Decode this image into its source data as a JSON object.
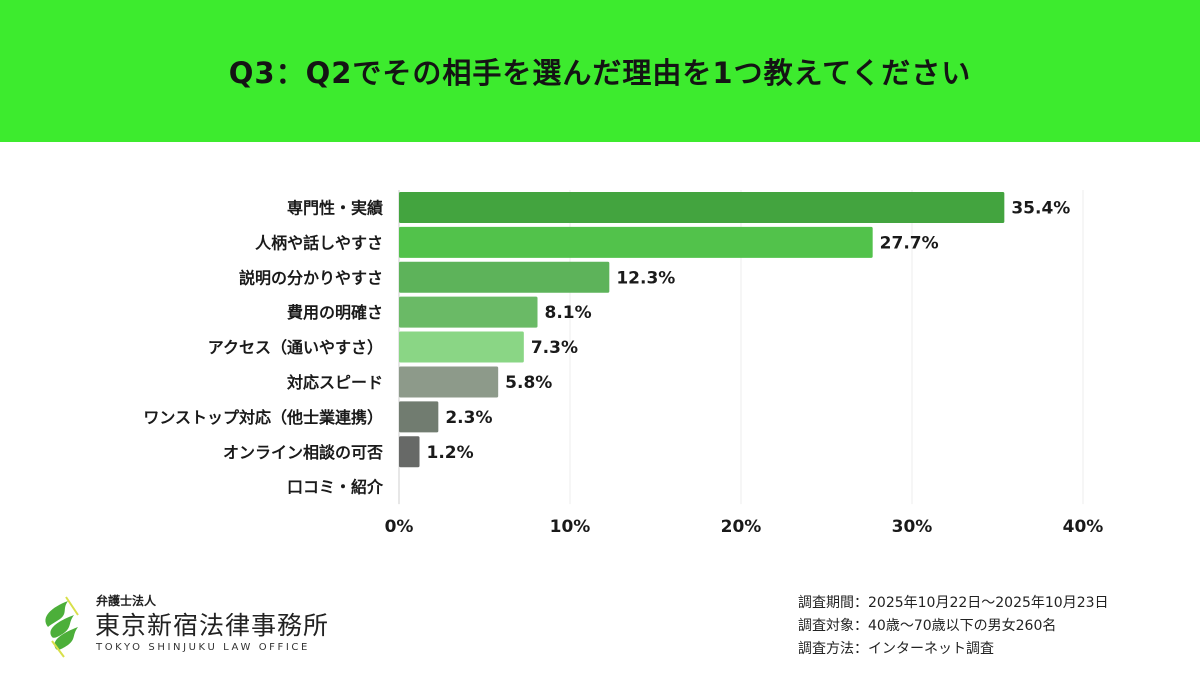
{
  "header": {
    "title": "Q3：Q2でその相手を選んだ理由を1つ教えてください",
    "background": "#3deb2e"
  },
  "chart_data": {
    "type": "bar",
    "orientation": "horizontal",
    "title": "Q3：Q2でその相手を選んだ理由を1つ教えてください",
    "categories": [
      "専門性・実績",
      "人柄や話しやすさ",
      "説明の分かりやすさ",
      "費用の明確さ",
      "アクセス（通いやすさ）",
      "対応スピード",
      "ワンストップ対応（他士業連携）",
      "オンライン相談の可否",
      "口コミ・紹介"
    ],
    "values": [
      35.4,
      27.7,
      12.3,
      8.1,
      7.3,
      5.8,
      2.3,
      1.2,
      0
    ],
    "data_labels": [
      "35.4%",
      "27.7%",
      "12.3%",
      "8.1%",
      "7.3%",
      "5.8%",
      "2.3%",
      "1.2%",
      ""
    ],
    "colors": [
      "#43a43f",
      "#52c24b",
      "#5db35a",
      "#6aba66",
      "#8ad685",
      "#8d9a8a",
      "#717c70",
      "#676967",
      "#676967"
    ],
    "xlim": [
      0,
      40
    ],
    "xticks": [
      "0%",
      "10%",
      "20%",
      "30%",
      "40%"
    ],
    "xlabel": "",
    "ylabel": "",
    "grid": "vertical"
  },
  "logo": {
    "small": "弁護士法人",
    "main": "東京新宿法律事務所",
    "en": "TOKYO SHINJUKU LAW OFFICE"
  },
  "notes": [
    "調査期間：2025年10月22日～2025年10月23日",
    "調査対象：40歳～70歳以下の男女260名",
    "調査方法：インターネット調査"
  ]
}
